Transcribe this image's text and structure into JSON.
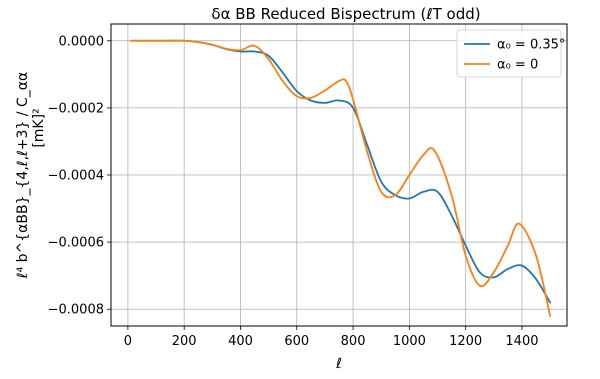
{
  "chart_data": {
    "type": "line",
    "title": "δα BB Reduced Bispectrum (ℓT odd)",
    "xlabel": "ℓ",
    "ylabel": "ℓ⁴ b^{αBB}_{4,ℓ,ℓ+3} / C_αα",
    "ylabel_unit": "[mK]²",
    "xlim": [
      -60,
      1560
    ],
    "ylim": [
      -0.00085,
      5e-05
    ],
    "x_ticks": [
      0,
      200,
      400,
      600,
      800,
      1000,
      1200,
      1400
    ],
    "x_tick_labels": [
      "0",
      "200",
      "400",
      "600",
      "800",
      "1000",
      "1200",
      "1400"
    ],
    "y_ticks": [
      0,
      -0.0002,
      -0.0004,
      -0.0006,
      -0.0008
    ],
    "y_tick_labels": [
      "0.0000",
      "−0.0002",
      "−0.0004",
      "−0.0006",
      "−0.0008"
    ],
    "grid": true,
    "legend_position": "top-right",
    "series": [
      {
        "name": "α₀ = 0.35°",
        "color": "#1f77b4",
        "x": [
          10,
          100,
          200,
          250,
          300,
          350,
          400,
          450,
          500,
          550,
          600,
          650,
          700,
          750,
          800,
          850,
          900,
          950,
          1000,
          1050,
          1100,
          1150,
          1200,
          1250,
          1300,
          1350,
          1400,
          1450,
          1500
        ],
        "y": [
          0.0,
          0.0,
          0.0,
          -4e-06,
          -1.2e-05,
          -2.5e-05,
          -3.2e-05,
          -3.2e-05,
          -4.5e-05,
          -9.5e-05,
          -0.00015,
          -0.000178,
          -0.000185,
          -0.000178,
          -0.0002,
          -0.00031,
          -0.00042,
          -0.00046,
          -0.00047,
          -0.00045,
          -0.00045,
          -0.00052,
          -0.00061,
          -0.00069,
          -0.000705,
          -0.00068,
          -0.00067,
          -0.00071,
          -0.00078
        ]
      },
      {
        "name": "α₀ = 0",
        "color": "#ff7f0e",
        "x": [
          10,
          100,
          200,
          250,
          300,
          350,
          400,
          450,
          500,
          550,
          600,
          650,
          700,
          750,
          775,
          800,
          850,
          900,
          950,
          1000,
          1050,
          1090,
          1150,
          1200,
          1250,
          1300,
          1350,
          1390,
          1450,
          1500
        ],
        "y": [
          0.0,
          0.0,
          0.0,
          -4e-06,
          -1.2e-05,
          -2.4e-05,
          -2.8e-05,
          -1.5e-05,
          -5.5e-05,
          -0.00012,
          -0.000165,
          -0.00017,
          -0.000148,
          -0.00012,
          -0.00012,
          -0.000175,
          -0.00033,
          -0.00045,
          -0.00046,
          -0.0004,
          -0.00034,
          -0.000328,
          -0.00046,
          -0.00064,
          -0.00073,
          -0.00069,
          -0.00061,
          -0.000545,
          -0.00064,
          -0.00082
        ]
      }
    ]
  }
}
